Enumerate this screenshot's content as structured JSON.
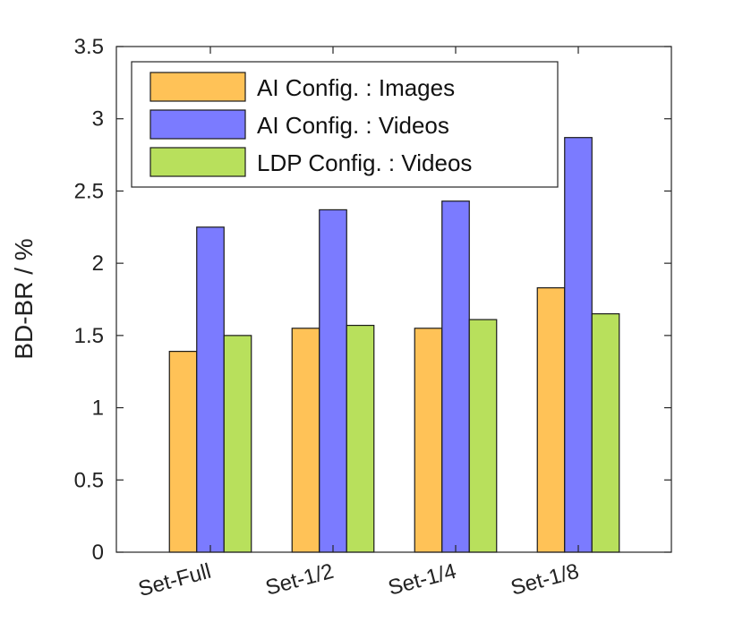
{
  "chart_data": {
    "type": "bar",
    "title": "",
    "xlabel": "",
    "ylabel": "BD-BR / %",
    "ylim": [
      0,
      3.5
    ],
    "yticks": [
      0,
      0.5,
      1,
      1.5,
      2,
      2.5,
      3,
      3.5
    ],
    "ytick_labels": [
      "0",
      "0.5",
      "1",
      "1.5",
      "2",
      "2.5",
      "3",
      "3.5"
    ],
    "categories": [
      "Set-Full",
      "Set-1/2",
      "Set-1/4",
      "Set-1/8"
    ],
    "legend_position": "top-left",
    "grid": false,
    "series": [
      {
        "name": "AI Config. : Images",
        "color": "#FFC257",
        "values": [
          1.39,
          1.55,
          1.55,
          1.83
        ]
      },
      {
        "name": "AI Config. : Videos",
        "color": "#7B7BFF",
        "values": [
          2.25,
          2.37,
          2.43,
          2.87
        ]
      },
      {
        "name": "LDP Config. : Videos",
        "color": "#B8E05C",
        "values": [
          1.5,
          1.57,
          1.61,
          1.65
        ]
      }
    ]
  }
}
